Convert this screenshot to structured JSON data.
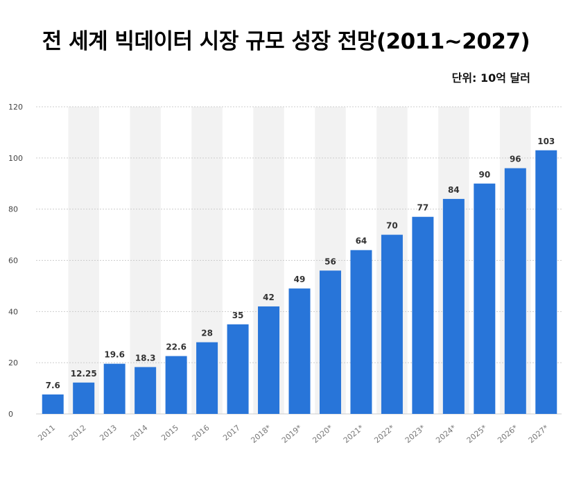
{
  "title": "전 세계 빅데이터 시장 규모 성장 전망(2011~2027)",
  "unit": "단위: 10억 달러",
  "colors": {
    "bar": "#2875d9",
    "band": "#f2f2f2",
    "grid": "#cccccc"
  },
  "chart_data": {
    "type": "bar",
    "categories": [
      "2011",
      "2012",
      "2013",
      "2014",
      "2015",
      "2016",
      "2017",
      "2018*",
      "2019*",
      "2020*",
      "2021*",
      "2022*",
      "2023*",
      "2024*",
      "2025*",
      "2026*",
      "2027*"
    ],
    "values": [
      7.6,
      12.25,
      19.6,
      18.3,
      22.6,
      28,
      35,
      42,
      49,
      56,
      64,
      70,
      77,
      84,
      90,
      96,
      103
    ],
    "value_labels": [
      "7.6",
      "12.25",
      "19.6",
      "18.3",
      "22.6",
      "28",
      "35",
      "42",
      "49",
      "56",
      "64",
      "70",
      "77",
      "84",
      "90",
      "96",
      "103"
    ],
    "ylim": [
      0,
      120
    ],
    "yticks": [
      0,
      20,
      40,
      60,
      80,
      100,
      120
    ],
    "xlabel": "",
    "ylabel": "",
    "grid": true
  }
}
